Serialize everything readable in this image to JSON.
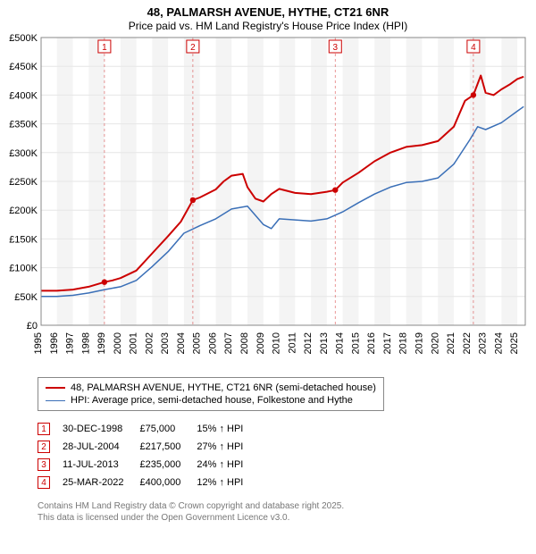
{
  "title": "48, PALMARSH AVENUE, HYTHE, CT21 6NR",
  "subtitle": "Price paid vs. HM Land Registry's House Price Index (HPI)",
  "chart": {
    "type": "line",
    "background_color": "#ffffff",
    "plot_border_color": "#888888",
    "grid_color": "#e6e6e6",
    "band_color": "#f4f4f4",
    "x_years": [
      1995,
      1996,
      1997,
      1998,
      1999,
      2000,
      2001,
      2002,
      2003,
      2004,
      2005,
      2006,
      2007,
      2008,
      2009,
      2010,
      2011,
      2012,
      2013,
      2014,
      2015,
      2016,
      2017,
      2018,
      2019,
      2020,
      2021,
      2022,
      2023,
      2024,
      2025
    ],
    "xlim": [
      1995,
      2025.5
    ],
    "ylim": [
      0,
      500000
    ],
    "ytick_step": 50000,
    "ytick_labels": [
      "£0",
      "£50K",
      "£100K",
      "£150K",
      "£200K",
      "£250K",
      "£300K",
      "£350K",
      "£400K",
      "£450K",
      "£500K"
    ],
    "tick_fontsize": 11,
    "series": [
      {
        "name": "48, PALMARSH AVENUE, HYTHE, CT21 6NR (semi-detached house)",
        "color": "#cc0000",
        "line_width": 2,
        "x": [
          1995,
          1996,
          1997,
          1998,
          1998.99,
          1999.5,
          2000,
          2001,
          2002,
          2003,
          2003.8,
          2004.56,
          2005,
          2006,
          2006.5,
          2007,
          2007.7,
          2008,
          2008.5,
          2009,
          2009.5,
          2010,
          2011,
          2012,
          2013,
          2013.53,
          2014,
          2015,
          2016,
          2017,
          2018,
          2019,
          2020,
          2021,
          2021.7,
          2022.23,
          2022.7,
          2023,
          2023.5,
          2024,
          2024.5,
          2025,
          2025.4
        ],
        "y": [
          60000,
          60000,
          62000,
          67000,
          75000,
          78000,
          82000,
          95000,
          125000,
          155000,
          180000,
          217500,
          222000,
          236000,
          250000,
          260000,
          263000,
          240000,
          220000,
          215000,
          228000,
          237000,
          230000,
          228000,
          232000,
          235000,
          248000,
          265000,
          285000,
          300000,
          310000,
          313000,
          320000,
          345000,
          390000,
          400000,
          434000,
          404000,
          400000,
          410000,
          418000,
          428000,
          432000
        ]
      },
      {
        "name": "HPI: Average price, semi-detached house, Folkestone and Hythe",
        "color": "#3a6fb7",
        "line_width": 1.5,
        "x": [
          1995,
          1996,
          1997,
          1998,
          1999,
          2000,
          2001,
          2002,
          2003,
          2004,
          2005,
          2006,
          2007,
          2008,
          2009,
          2009.5,
          2010,
          2011,
          2012,
          2013,
          2014,
          2015,
          2016,
          2017,
          2018,
          2019,
          2020,
          2021,
          2022,
          2022.5,
          2023,
          2024,
          2025,
          2025.4
        ],
        "y": [
          50000,
          50000,
          52000,
          56000,
          62000,
          67000,
          78000,
          102000,
          128000,
          160000,
          173000,
          185000,
          202000,
          207000,
          175000,
          168000,
          185000,
          183000,
          181000,
          185000,
          197000,
          213000,
          228000,
          240000,
          248000,
          250000,
          256000,
          280000,
          322000,
          345000,
          340000,
          352000,
          372000,
          380000
        ]
      }
    ],
    "sale_markers": [
      {
        "n": "1",
        "year": 1998.99,
        "price": 75000,
        "color": "#cc0000"
      },
      {
        "n": "2",
        "year": 2004.56,
        "price": 217500,
        "color": "#cc0000"
      },
      {
        "n": "3",
        "year": 2013.53,
        "price": 235000,
        "color": "#cc0000"
      },
      {
        "n": "4",
        "year": 2022.23,
        "price": 400000,
        "color": "#cc0000"
      }
    ]
  },
  "legend": {
    "border_color": "#888888",
    "items": [
      {
        "color": "#cc0000",
        "width": 2,
        "label": "48, PALMARSH AVENUE, HYTHE, CT21 6NR (semi-detached house)"
      },
      {
        "color": "#3a6fb7",
        "width": 1.5,
        "label": "HPI: Average price, semi-detached house, Folkestone and Hythe"
      }
    ]
  },
  "sales_table": {
    "marker_border": "#cc0000",
    "marker_text": "#cc0000",
    "arrow": "↑",
    "rows": [
      {
        "n": "1",
        "date": "30-DEC-1998",
        "price": "£75,000",
        "delta": "15% ↑ HPI"
      },
      {
        "n": "2",
        "date": "28-JUL-2004",
        "price": "£217,500",
        "delta": "27% ↑ HPI"
      },
      {
        "n": "3",
        "date": "11-JUL-2013",
        "price": "£235,000",
        "delta": "24% ↑ HPI"
      },
      {
        "n": "4",
        "date": "25-MAR-2022",
        "price": "£400,000",
        "delta": "12% ↑ HPI"
      }
    ]
  },
  "footer": {
    "line1": "Contains HM Land Registry data © Crown copyright and database right 2025.",
    "line2": "This data is licensed under the Open Government Licence v3.0."
  }
}
